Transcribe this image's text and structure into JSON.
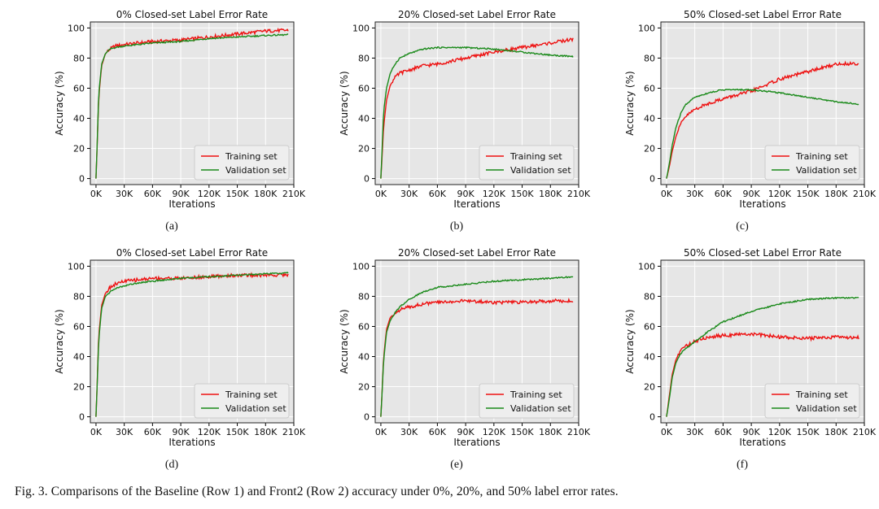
{
  "caption": "Fig. 3. Comparisons of the Baseline (Row 1) and Front2 (Row 2) accuracy under 0%, 20%, and 50% label error rates.",
  "colors": {
    "training": "#ee1111",
    "validation": "#1a8a1a",
    "plot_bg": "#e6e6e6",
    "grid": "#ffffff"
  },
  "chart_data": [
    {
      "type": "line",
      "panel": "(a)",
      "title": "0% Closed-set Label Error Rate",
      "xlabel": "Iterations",
      "ylabel": "Accuracy (%)",
      "xlim": [
        -6000,
        210000
      ],
      "ylim": [
        -4,
        104
      ],
      "xticks": [
        "0K",
        "30K",
        "60K",
        "90K",
        "120K",
        "150K",
        "180K",
        "210K"
      ],
      "yticks": [
        "0",
        "20",
        "40",
        "60",
        "80",
        "100"
      ],
      "grid": true,
      "legend_position": "lower-right",
      "series": [
        {
          "name": "Training set",
          "x": [
            0,
            3000,
            6000,
            10000,
            15000,
            20000,
            30000,
            45000,
            60000,
            90000,
            120000,
            150000,
            180000,
            204000
          ],
          "y": [
            0,
            55,
            75,
            83,
            86,
            88,
            89,
            90,
            91,
            92,
            94,
            96,
            98,
            98.5
          ]
        },
        {
          "name": "Validation set",
          "x": [
            0,
            3000,
            6000,
            10000,
            15000,
            20000,
            30000,
            45000,
            60000,
            90000,
            120000,
            150000,
            180000,
            204000
          ],
          "y": [
            0,
            57,
            76,
            83,
            86,
            87,
            88,
            89,
            90,
            91,
            93,
            94,
            95,
            95.5
          ]
        }
      ]
    },
    {
      "type": "line",
      "panel": "(b)",
      "title": "20% Closed-set Label Error Rate",
      "xlabel": "Iterations",
      "ylabel": "Accuracy (%)",
      "xlim": [
        -6000,
        210000
      ],
      "ylim": [
        -4,
        104
      ],
      "xticks": [
        "0K",
        "30K",
        "60K",
        "90K",
        "120K",
        "150K",
        "180K",
        "210K"
      ],
      "yticks": [
        "0",
        "20",
        "40",
        "60",
        "80",
        "100"
      ],
      "grid": true,
      "legend_position": "lower-right",
      "series": [
        {
          "name": "Training set",
          "x": [
            0,
            3000,
            6000,
            10000,
            15000,
            20000,
            30000,
            45000,
            60000,
            90000,
            120000,
            150000,
            180000,
            204000
          ],
          "y": [
            0,
            35,
            52,
            62,
            67,
            70,
            72,
            75,
            76,
            80,
            84,
            87,
            90,
            92.5
          ]
        },
        {
          "name": "Validation set",
          "x": [
            0,
            3000,
            6000,
            10000,
            15000,
            20000,
            30000,
            45000,
            60000,
            90000,
            120000,
            150000,
            180000,
            204000
          ],
          "y": [
            0,
            45,
            60,
            70,
            76,
            80,
            83,
            86,
            87,
            87,
            86,
            84,
            82,
            81
          ]
        }
      ]
    },
    {
      "type": "line",
      "panel": "(c)",
      "title": "50% Closed-set Label Error Rate",
      "xlabel": "Iterations",
      "ylabel": "Accuracy (%)",
      "xlim": [
        -6000,
        210000
      ],
      "ylim": [
        -4,
        104
      ],
      "xticks": [
        "0K",
        "30K",
        "60K",
        "90K",
        "120K",
        "150K",
        "180K",
        "210K"
      ],
      "yticks": [
        "0",
        "20",
        "40",
        "60",
        "80",
        "100"
      ],
      "grid": true,
      "legend_position": "lower-right",
      "series": [
        {
          "name": "Training set",
          "x": [
            0,
            3000,
            6000,
            10000,
            15000,
            20000,
            30000,
            45000,
            60000,
            90000,
            120000,
            150000,
            180000,
            204000
          ],
          "y": [
            0,
            8,
            18,
            28,
            36,
            41,
            46,
            50,
            53,
            58,
            66,
            71,
            76,
            76.5
          ]
        },
        {
          "name": "Validation set",
          "x": [
            0,
            3000,
            6000,
            10000,
            15000,
            20000,
            30000,
            45000,
            60000,
            90000,
            120000,
            150000,
            180000,
            204000
          ],
          "y": [
            0,
            10,
            22,
            34,
            43,
            49,
            54,
            57,
            59,
            59,
            57,
            54,
            51,
            49.5
          ]
        }
      ]
    },
    {
      "type": "line",
      "panel": "(d)",
      "title": "0% Closed-set Label Error Rate",
      "xlabel": "Iterations",
      "ylabel": "Accuracy (%)",
      "xlim": [
        -6000,
        210000
      ],
      "ylim": [
        -4,
        104
      ],
      "xticks": [
        "0K",
        "30K",
        "60K",
        "90K",
        "120K",
        "150K",
        "180K",
        "210K"
      ],
      "yticks": [
        "0",
        "20",
        "40",
        "60",
        "80",
        "100"
      ],
      "grid": true,
      "legend_position": "lower-right",
      "series": [
        {
          "name": "Training set",
          "x": [
            0,
            3000,
            6000,
            10000,
            15000,
            20000,
            30000,
            45000,
            60000,
            90000,
            120000,
            150000,
            180000,
            204000
          ],
          "y": [
            0,
            55,
            74,
            82,
            86,
            88,
            90,
            91,
            92,
            92,
            93,
            94,
            94,
            94.5
          ]
        },
        {
          "name": "Validation set",
          "x": [
            0,
            3000,
            6000,
            10000,
            15000,
            20000,
            30000,
            45000,
            60000,
            90000,
            120000,
            150000,
            180000,
            204000
          ],
          "y": [
            0,
            52,
            72,
            80,
            83,
            85,
            87,
            89,
            90,
            92,
            93,
            94,
            95,
            95.5
          ]
        }
      ]
    },
    {
      "type": "line",
      "panel": "(e)",
      "title": "20% Closed-set Label Error Rate",
      "xlabel": "Iterations",
      "ylabel": "Accuracy (%)",
      "xlim": [
        -6000,
        210000
      ],
      "ylim": [
        -4,
        104
      ],
      "xticks": [
        "0K",
        "30K",
        "60K",
        "90K",
        "120K",
        "150K",
        "180K",
        "210K"
      ],
      "yticks": [
        "0",
        "20",
        "40",
        "60",
        "80",
        "100"
      ],
      "grid": true,
      "legend_position": "lower-right",
      "series": [
        {
          "name": "Training set",
          "x": [
            0,
            3000,
            6000,
            10000,
            15000,
            20000,
            30000,
            45000,
            60000,
            90000,
            120000,
            150000,
            180000,
            204000
          ],
          "y": [
            0,
            40,
            58,
            66,
            69,
            71,
            73,
            75,
            76,
            77,
            76,
            76,
            77,
            77
          ]
        },
        {
          "name": "Validation set",
          "x": [
            0,
            3000,
            6000,
            10000,
            15000,
            20000,
            30000,
            45000,
            60000,
            90000,
            120000,
            150000,
            180000,
            204000
          ],
          "y": [
            0,
            38,
            56,
            64,
            69,
            73,
            78,
            83,
            86,
            88,
            90,
            91,
            92,
            93
          ]
        }
      ]
    },
    {
      "type": "line",
      "panel": "(f)",
      "title": "50% Closed-set Label Error Rate",
      "xlabel": "Iterations",
      "ylabel": "Accuracy (%)",
      "xlim": [
        -6000,
        210000
      ],
      "ylim": [
        -4,
        104
      ],
      "xticks": [
        "0K",
        "30K",
        "60K",
        "90K",
        "120K",
        "150K",
        "180K",
        "210K"
      ],
      "yticks": [
        "0",
        "20",
        "40",
        "60",
        "80",
        "100"
      ],
      "grid": true,
      "legend_position": "lower-right",
      "series": [
        {
          "name": "Training set",
          "x": [
            0,
            3000,
            6000,
            10000,
            15000,
            20000,
            30000,
            45000,
            60000,
            90000,
            120000,
            150000,
            180000,
            204000
          ],
          "y": [
            0,
            14,
            28,
            38,
            44,
            47,
            50,
            53,
            54,
            55,
            53,
            52,
            53,
            52.5
          ]
        },
        {
          "name": "Validation set",
          "x": [
            0,
            3000,
            6000,
            10000,
            15000,
            20000,
            30000,
            45000,
            60000,
            90000,
            120000,
            150000,
            180000,
            204000
          ],
          "y": [
            0,
            12,
            26,
            36,
            42,
            45,
            50,
            57,
            63,
            70,
            75,
            78,
            79,
            79
          ]
        }
      ]
    }
  ]
}
